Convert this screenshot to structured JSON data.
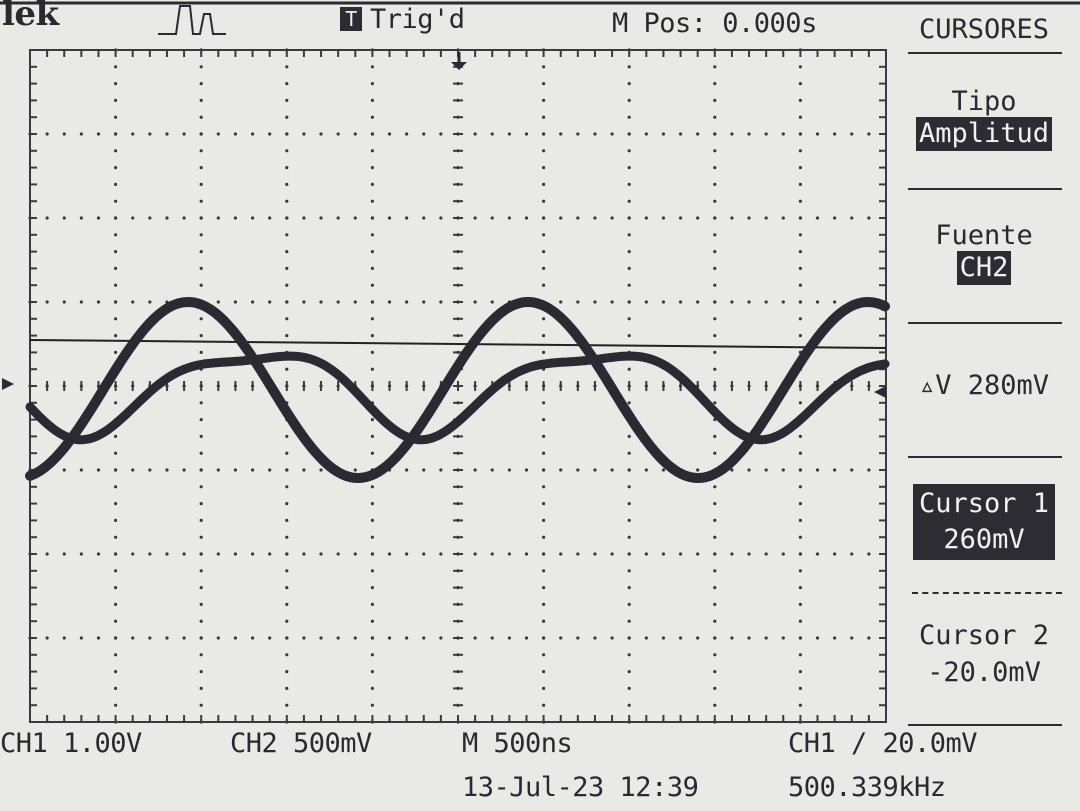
{
  "header": {
    "brand": "lek",
    "trigger_status": "Trig'd",
    "trigger_badge": "T",
    "main_position": "M Pos: 0.000s"
  },
  "menu": {
    "title": "CURSORES",
    "tipo_label": "Tipo",
    "tipo_value": "Amplitud",
    "fuente_label": "Fuente",
    "fuente_value": "CH2",
    "delta_label": "▵V 280mV",
    "cursor1_label": "Cursor 1",
    "cursor1_value": "260mV",
    "cursor2_label": "Cursor 2",
    "cursor2_value": "-20.0mV"
  },
  "footer": {
    "ch1_scale": "CH1  1.00V",
    "ch2_scale": "CH2  500mV",
    "timebase": "M 500ns",
    "trigger_setting": "CH1 ∕ 20.0mV",
    "date_time": "13-Jul-23 12:39",
    "frequency": "500.339kHz"
  },
  "colors": {
    "background": "#e9e9e6",
    "trace": "#2b2931",
    "grid": "#3a3a3e",
    "menu_highlight": "#2e2c33"
  },
  "icons": {
    "trigger_badge": "trigger-badge-icon",
    "acquisition": "acquisition-pulse-icon",
    "trigger_marker": "trigger-position-arrow-icon",
    "ground_marker": "channel-ground-marker-icon"
  }
}
